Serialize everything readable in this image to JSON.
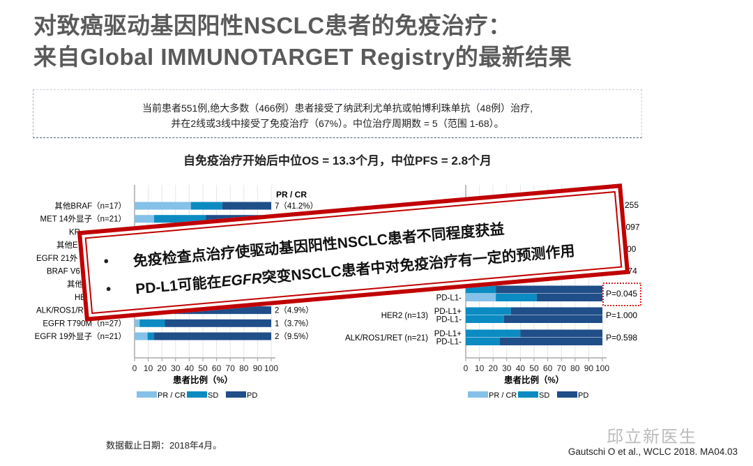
{
  "title": {
    "line1": "对致癌驱动基因阳性NSCLC患者的免疫治疗：",
    "line2": "来自Global IMMUNOTARGET Registry的最新结果"
  },
  "summary": {
    "line1": "当前患者551例,绝大多数（466例）患者接受了纳武利尤单抗或帕博利珠单抗（48例）治疗,",
    "line2": "并在2线或3线中接受了免疫治疗（67%）。中位治疗周期数 = 5（范围 1-68）。"
  },
  "headline": "自免疫治疗开始后中位OS = 13.3个月，中位PFS = 2.8个月",
  "overlay": {
    "bullet": "•",
    "point1": "免疫检查点治疗使驱动基因阳性NSCLC患者不同程度获益",
    "point2_pre": "PD-L1可能在",
    "point2_italic": "EGFR",
    "point2_post": "突变NSCLC患者中对免疫治疗有一定的预测作用"
  },
  "colors": {
    "pr_cr": "#85c1e9",
    "sd": "#0b8bc2",
    "pd": "#1f4e89",
    "overlay_border": "#c00000",
    "highlight": "#e02020"
  },
  "chart_data": [
    {
      "type": "bar",
      "orientation": "horizontal",
      "stacked": true,
      "xlabel": "患者比例（%）",
      "xlim": [
        0,
        100
      ],
      "xticks": [
        0,
        10,
        20,
        30,
        40,
        50,
        60,
        70,
        80,
        90,
        100
      ],
      "grid": true,
      "legend_position": "bottom",
      "legend": [
        "PR / CR",
        "SD",
        "PD"
      ],
      "value_header": "PR / CR",
      "rows": [
        {
          "label": "其他BRAF（n=17）",
          "values": [
            41.2,
            23,
            35.8
          ],
          "annotation": "7（41.2%）"
        },
        {
          "label": "MET 14外显子（n=21）",
          "values": [
            14.3,
            38,
            47.7
          ],
          "annotation": ""
        },
        {
          "label": "KR",
          "values": null,
          "annotation": ""
        },
        {
          "label": "其他E",
          "values": null,
          "annotation": ""
        },
        {
          "label": "EGFR 21外",
          "values": null,
          "annotation": ""
        },
        {
          "label": "BRAF V6",
          "values": null,
          "annotation": ""
        },
        {
          "label": "其他",
          "values": null,
          "annotation": ""
        },
        {
          "label": "HE",
          "values": null,
          "annotation": ""
        },
        {
          "label": "ALK/ROS1/R",
          "values": [
            4.9,
            20,
            75.1
          ],
          "annotation": "2（4.9%）"
        },
        {
          "label": "EGFR T790M（n=27）",
          "values": [
            3.7,
            18.5,
            77.8
          ],
          "annotation": "1（3.7%）"
        },
        {
          "label": "EGFR 19外显子（n=21）",
          "values": [
            9.5,
            4.8,
            85.7
          ],
          "annotation": "2（9.5%）"
        }
      ]
    },
    {
      "type": "bar",
      "orientation": "horizontal",
      "stacked": true,
      "xlabel": "患者比例（%）",
      "xlim": [
        0,
        100
      ],
      "xticks": [
        0,
        10,
        20,
        30,
        40,
        50,
        60,
        70,
        80,
        90,
        100
      ],
      "grid": true,
      "legend_position": "bottom",
      "legend": [
        "PR / CR",
        "SD",
        "PD"
      ],
      "hidden_pvalues": [
        "255",
        "097",
        "00",
        "74"
      ],
      "groups": [
        {
          "label": "",
          "p": "P=0.045",
          "highlighted": true,
          "bars": [
            {
              "label": "",
              "values": [
                0,
                22,
                78
              ]
            },
            {
              "label": "PD-L1-",
              "values": [
                22,
                30,
                48
              ]
            }
          ]
        },
        {
          "label": "HER2 (n=13)",
          "p": "P=1.000",
          "highlighted": false,
          "bars": [
            {
              "label": "PD-L1+",
              "values": [
                0,
                33,
                67
              ]
            },
            {
              "label": "PD-L1-",
              "values": [
                0,
                28,
                72
              ]
            }
          ]
        },
        {
          "label": "ALK/ROS1/RET (n=21)",
          "p": "P=0.598",
          "highlighted": false,
          "bars": [
            {
              "label": "PD-L1+",
              "values": [
                0,
                40,
                60
              ]
            },
            {
              "label": "PD-L1-",
              "values": [
                0,
                25,
                75
              ]
            }
          ]
        }
      ]
    }
  ],
  "footer": {
    "cutoff": "数据截止日期：2018年4月。",
    "citation": "Gautschi O et al.,  WCLC 2018. MA04.03",
    "watermark": "邱立新医生"
  }
}
